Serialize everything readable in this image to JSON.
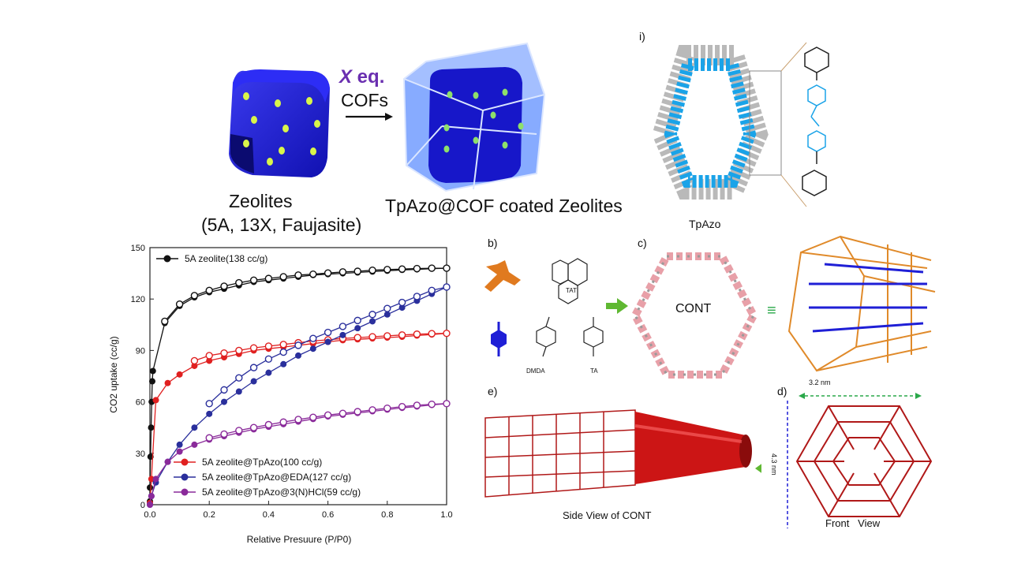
{
  "scheme": {
    "arrow_label_var": "X",
    "arrow_label_eq": " eq.",
    "arrow_label_cofs": "COFs",
    "zeolites_title": "Zeolites",
    "zeolites_sub": "(5A, 13X, Faujasite)",
    "coated_title": "TpAzo@COF coated Zeolites"
  },
  "panels": {
    "i_label": "i)",
    "tpazo_label": "TpAzo",
    "b_label": "b)",
    "c_label": "c)",
    "d_label": "d)",
    "e_label": "e)",
    "tat_label": "TAT",
    "dmda_label": "DMDA",
    "ta_label": "TA",
    "cont_label": "CONT",
    "equiv_symbol": "≡",
    "side_view": "Side View of CONT",
    "front_view": "Front   View",
    "dim_width": "3.2 nm",
    "dim_height": "4.3 nm"
  },
  "colors": {
    "black_series": "#111111",
    "red_series": "#e02020",
    "blue_series": "#2a2f9c",
    "purple_series": "#8a2a9a",
    "zeolite_blue": "#1f1fd6",
    "coating_blue": "#4a7df0",
    "tpazo_cyan": "#1aa3e8",
    "cont_red": "#b01818"
  },
  "chart_data": {
    "type": "line",
    "xlabel": "Relative Presuure (P/P0)",
    "ylabel": "CO2 uptake (cc/g)",
    "xlim": [
      0,
      1.0
    ],
    "ylim": [
      0,
      150
    ],
    "xticks": [
      "0.0",
      "0.2",
      "0.4",
      "0.6",
      "0.8",
      "1.0"
    ],
    "yticks": [
      "0",
      "30",
      "60",
      "90",
      "120",
      "150"
    ],
    "legend_top": "top-left",
    "legend_bottom": "bottom-left",
    "series": [
      {
        "name": "5A zeolite(138 cc/g)",
        "color": "#111111",
        "ads": [
          [
            0.0,
            2
          ],
          [
            0.0,
            10
          ],
          [
            0.002,
            28
          ],
          [
            0.004,
            45
          ],
          [
            0.006,
            60
          ],
          [
            0.008,
            72
          ],
          [
            0.01,
            78
          ],
          [
            0.05,
            106
          ],
          [
            0.1,
            116
          ],
          [
            0.15,
            121
          ],
          [
            0.2,
            124
          ],
          [
            0.25,
            126
          ],
          [
            0.3,
            128
          ],
          [
            0.35,
            130
          ],
          [
            0.4,
            131
          ],
          [
            0.45,
            132
          ],
          [
            0.5,
            133
          ],
          [
            0.55,
            134
          ],
          [
            0.6,
            134.5
          ],
          [
            0.65,
            135
          ],
          [
            0.7,
            135.5
          ],
          [
            0.75,
            136
          ],
          [
            0.8,
            136.5
          ],
          [
            0.85,
            137
          ],
          [
            0.9,
            137.3
          ],
          [
            0.95,
            137.7
          ],
          [
            1.0,
            138
          ]
        ],
        "des": [
          [
            1.0,
            138
          ],
          [
            0.95,
            138
          ],
          [
            0.9,
            137.8
          ],
          [
            0.85,
            137.5
          ],
          [
            0.8,
            137.2
          ],
          [
            0.75,
            136.8
          ],
          [
            0.7,
            136.2
          ],
          [
            0.65,
            135.8
          ],
          [
            0.6,
            135.2
          ],
          [
            0.55,
            134.5
          ],
          [
            0.5,
            134
          ],
          [
            0.45,
            133
          ],
          [
            0.4,
            132
          ],
          [
            0.35,
            131
          ],
          [
            0.3,
            129.5
          ],
          [
            0.25,
            127.5
          ],
          [
            0.2,
            125
          ],
          [
            0.15,
            122
          ],
          [
            0.1,
            117
          ],
          [
            0.05,
            107
          ]
        ]
      },
      {
        "name": "5A zeolite@TpAzo(100 cc/g)",
        "color": "#e02020",
        "ads": [
          [
            0.0,
            1
          ],
          [
            0.005,
            15
          ],
          [
            0.02,
            61
          ],
          [
            0.06,
            71
          ],
          [
            0.1,
            76
          ],
          [
            0.15,
            81
          ],
          [
            0.2,
            84
          ],
          [
            0.25,
            86
          ],
          [
            0.3,
            88
          ],
          [
            0.35,
            90
          ],
          [
            0.4,
            91
          ],
          [
            0.45,
            92
          ],
          [
            0.5,
            93
          ],
          [
            0.55,
            94
          ],
          [
            0.6,
            95
          ],
          [
            0.65,
            96
          ],
          [
            0.7,
            96.5
          ],
          [
            0.75,
            97
          ],
          [
            0.8,
            97.5
          ],
          [
            0.85,
            98
          ],
          [
            0.9,
            98.7
          ],
          [
            0.95,
            99.3
          ],
          [
            1.0,
            100
          ]
        ],
        "des": [
          [
            1.0,
            100
          ],
          [
            0.95,
            99.8
          ],
          [
            0.9,
            99.5
          ],
          [
            0.85,
            99
          ],
          [
            0.8,
            98.5
          ],
          [
            0.75,
            98
          ],
          [
            0.7,
            97.5
          ],
          [
            0.65,
            97
          ],
          [
            0.6,
            96.2
          ],
          [
            0.55,
            95.5
          ],
          [
            0.5,
            94.5
          ],
          [
            0.45,
            93.5
          ],
          [
            0.4,
            92.5
          ],
          [
            0.35,
            91.5
          ],
          [
            0.3,
            90
          ],
          [
            0.25,
            88.5
          ],
          [
            0.2,
            87
          ],
          [
            0.15,
            84
          ]
        ]
      },
      {
        "name": "5A zeolite@TpAzo@EDA(127 cc/g)",
        "color": "#2a2f9c",
        "ads": [
          [
            0.0,
            0
          ],
          [
            0.005,
            5
          ],
          [
            0.02,
            13
          ],
          [
            0.06,
            25
          ],
          [
            0.1,
            35
          ],
          [
            0.15,
            45
          ],
          [
            0.2,
            53
          ],
          [
            0.25,
            60
          ],
          [
            0.3,
            66
          ],
          [
            0.35,
            72
          ],
          [
            0.4,
            77
          ],
          [
            0.45,
            82
          ],
          [
            0.5,
            87
          ],
          [
            0.55,
            91
          ],
          [
            0.6,
            95
          ],
          [
            0.65,
            99
          ],
          [
            0.7,
            103
          ],
          [
            0.75,
            107
          ],
          [
            0.8,
            111
          ],
          [
            0.85,
            115
          ],
          [
            0.9,
            119
          ],
          [
            0.95,
            123
          ],
          [
            1.0,
            127
          ]
        ],
        "des": [
          [
            1.0,
            127
          ],
          [
            0.95,
            125
          ],
          [
            0.9,
            121.5
          ],
          [
            0.85,
            118
          ],
          [
            0.8,
            114.5
          ],
          [
            0.75,
            111
          ],
          [
            0.7,
            107.5
          ],
          [
            0.65,
            104
          ],
          [
            0.6,
            100.5
          ],
          [
            0.55,
            97
          ],
          [
            0.5,
            93
          ],
          [
            0.45,
            89
          ],
          [
            0.4,
            85
          ],
          [
            0.35,
            80
          ],
          [
            0.3,
            74
          ],
          [
            0.25,
            67
          ],
          [
            0.2,
            59
          ]
        ]
      },
      {
        "name": "5A zeolite@TpAzo@3(N)HCl(59 cc/g)",
        "color": "#8a2a9a",
        "ads": [
          [
            0.0,
            0
          ],
          [
            0.005,
            5
          ],
          [
            0.02,
            15
          ],
          [
            0.06,
            25
          ],
          [
            0.1,
            31
          ],
          [
            0.15,
            35
          ],
          [
            0.2,
            38
          ],
          [
            0.25,
            40
          ],
          [
            0.3,
            42
          ],
          [
            0.35,
            44
          ],
          [
            0.4,
            45.5
          ],
          [
            0.45,
            47
          ],
          [
            0.5,
            48.5
          ],
          [
            0.55,
            50
          ],
          [
            0.6,
            51.5
          ],
          [
            0.65,
            52.5
          ],
          [
            0.7,
            53.5
          ],
          [
            0.75,
            54.5
          ],
          [
            0.8,
            55.5
          ],
          [
            0.85,
            56.5
          ],
          [
            0.9,
            57.3
          ],
          [
            0.95,
            58.2
          ],
          [
            1.0,
            59
          ]
        ],
        "des": [
          [
            1.0,
            59
          ],
          [
            0.95,
            58.6
          ],
          [
            0.9,
            58
          ],
          [
            0.85,
            57.2
          ],
          [
            0.8,
            56.3
          ],
          [
            0.75,
            55.3
          ],
          [
            0.7,
            54.3
          ],
          [
            0.65,
            53.3
          ],
          [
            0.6,
            52.3
          ],
          [
            0.55,
            51
          ],
          [
            0.5,
            49.7
          ],
          [
            0.45,
            48.2
          ],
          [
            0.4,
            46.7
          ],
          [
            0.35,
            45
          ],
          [
            0.3,
            43.3
          ],
          [
            0.25,
            41.2
          ],
          [
            0.2,
            39
          ]
        ]
      }
    ]
  }
}
